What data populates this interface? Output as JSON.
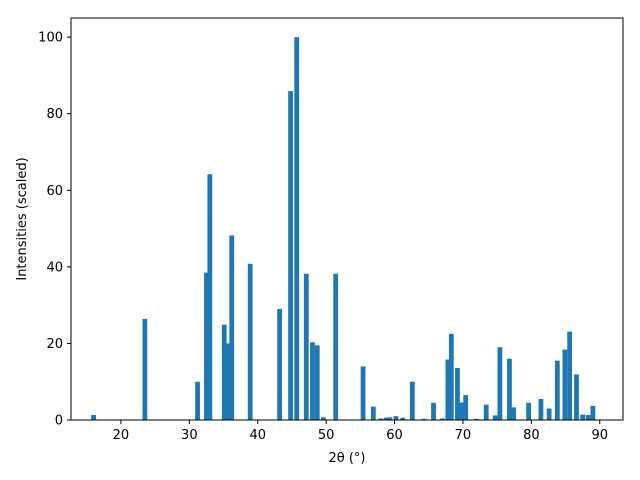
{
  "chart_data": {
    "type": "bar",
    "title": "",
    "xlabel": "2θ (°)",
    "ylabel": "Intensities (scaled)",
    "xlim": [
      12.7,
      93.4
    ],
    "ylim": [
      0,
      105
    ],
    "xticks": [
      20,
      30,
      40,
      50,
      60,
      70,
      80,
      90
    ],
    "yticks": [
      0,
      20,
      40,
      60,
      80,
      100
    ],
    "grid": false,
    "color": "#1f77b4",
    "bar_width": 0.7,
    "x": [
      16.0,
      23.5,
      31.2,
      32.5,
      33.0,
      35.1,
      35.6,
      36.2,
      38.9,
      43.2,
      44.8,
      45.7,
      47.1,
      48.0,
      48.7,
      49.6,
      51.4,
      55.4,
      56.9,
      58.0,
      58.8,
      59.3,
      60.2,
      61.2,
      62.6,
      64.3,
      65.7,
      67.0,
      67.8,
      68.3,
      69.2,
      69.8,
      70.4,
      72.0,
      73.4,
      74.7,
      75.4,
      76.8,
      77.4,
      79.6,
      81.4,
      82.6,
      83.8,
      84.9,
      85.6,
      86.6,
      87.5,
      88.3,
      89.0
    ],
    "values": [
      1.3,
      26.4,
      10.0,
      38.5,
      64.2,
      24.9,
      20.0,
      48.2,
      40.8,
      29.0,
      85.9,
      100.0,
      38.2,
      20.3,
      19.5,
      0.7,
      38.2,
      14.0,
      3.5,
      0.4,
      0.6,
      0.7,
      1.0,
      0.6,
      10.0,
      0.3,
      4.5,
      0.4,
      15.8,
      22.5,
      13.6,
      4.6,
      6.5,
      0.3,
      4.0,
      1.2,
      19.0,
      16.0,
      3.3,
      4.5,
      5.5,
      3.0,
      15.5,
      18.4,
      23.1,
      11.9,
      1.4,
      1.3,
      3.7
    ]
  }
}
